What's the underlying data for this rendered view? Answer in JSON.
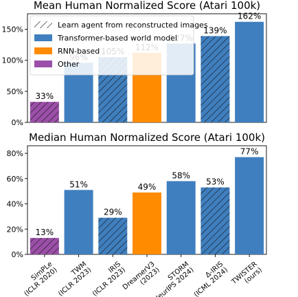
{
  "legend": [
    {
      "label": "Learn agent from reconstructed images",
      "swatch": "hatch"
    },
    {
      "label": "Transformer-based world model",
      "swatch": "#3f7fbf"
    },
    {
      "label": "RNN-based",
      "swatch": "#ff8c00"
    },
    {
      "label": "Other",
      "swatch": "#9b4fa8"
    }
  ],
  "colors": {
    "Transformer": "#3f7fbf",
    "RNN": "#ff8c00",
    "Other": "#9b4fa8"
  },
  "chart_data": [
    {
      "type": "bar",
      "title": "Mean Human Normalized Score (Atari 100k)",
      "ylim": [
        0,
        175
      ],
      "yticks": [
        0,
        50,
        100,
        150
      ],
      "ytick_labels": [
        "0%",
        "50%",
        "100%",
        "150%"
      ],
      "values": [
        33,
        96,
        105,
        112,
        127,
        139,
        162
      ],
      "labels": [
        "33%",
        "96%",
        "105%",
        "112%",
        "127%",
        "139%",
        "162%"
      ]
    },
    {
      "type": "bar",
      "title": "Median Human Normalized Score (Atari 100k)",
      "ylim": [
        0,
        86
      ],
      "yticks": [
        0,
        20,
        40,
        60,
        80
      ],
      "ytick_labels": [
        "0%",
        "20%",
        "40%",
        "60%",
        "80%"
      ],
      "values": [
        13,
        51,
        29,
        49,
        58,
        53,
        77
      ],
      "labels": [
        "13%",
        "51%",
        "29%",
        "49%",
        "58%",
        "53%",
        "77%"
      ]
    }
  ],
  "bars": [
    {
      "name": "SimPLe",
      "sub": "(ICLR 2020)",
      "category": "Other",
      "hatched": true
    },
    {
      "name": "TWM",
      "sub": "(ICLR 2023)",
      "category": "Transformer",
      "hatched": false
    },
    {
      "name": "IRIS",
      "sub": "(ICLR 2023)",
      "category": "Transformer",
      "hatched": true
    },
    {
      "name": "DreamerV3",
      "sub": "(2023)",
      "category": "RNN",
      "hatched": false
    },
    {
      "name": "STORM",
      "sub": "(NeurIPS 2024)",
      "category": "Transformer",
      "hatched": false
    },
    {
      "name": "Δ-IRIS",
      "sub": "(ICML 2024)",
      "category": "Transformer",
      "hatched": true
    },
    {
      "name": "TWISTER",
      "sub": "(ours)",
      "category": "Transformer",
      "hatched": false
    }
  ]
}
